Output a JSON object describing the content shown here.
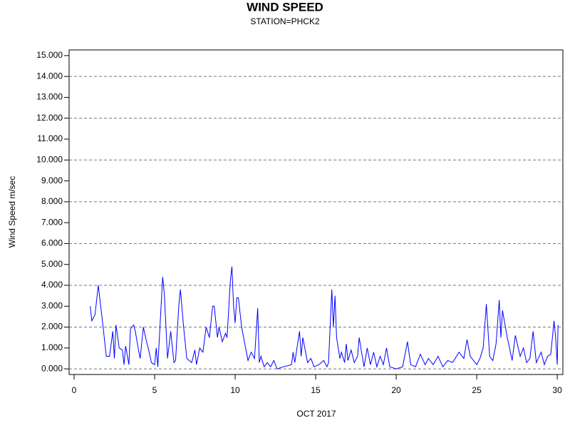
{
  "chart_data": {
    "type": "line",
    "title": "WIND SPEED",
    "subtitle": "STATION=PHCK2",
    "x_label": "OCT 2017",
    "y_label": "Wind Speed m/sec",
    "color": "#0000ff",
    "grid": true,
    "x": [
      1.0,
      1.1,
      1.3,
      1.5,
      1.8,
      2.0,
      2.2,
      2.4,
      2.5,
      2.6,
      2.8,
      3.0,
      3.1,
      3.2,
      3.4,
      3.5,
      3.7,
      3.8,
      4.0,
      4.1,
      4.3,
      4.5,
      4.6,
      4.8,
      5.0,
      5.1,
      5.2,
      5.5,
      5.6,
      5.8,
      6.0,
      6.2,
      6.3,
      6.5,
      6.6,
      6.8,
      7.0,
      7.3,
      7.5,
      7.6,
      7.8,
      8.0,
      8.2,
      8.4,
      8.6,
      8.7,
      8.9,
      9.0,
      9.2,
      9.4,
      9.5,
      9.7,
      9.8,
      9.9,
      10.0,
      10.1,
      10.2,
      10.4,
      10.6,
      10.8,
      11.0,
      11.2,
      11.4,
      11.5,
      11.6,
      11.8,
      12.0,
      12.2,
      12.4,
      12.6,
      13.0,
      13.5,
      13.6,
      13.7,
      14.0,
      14.1,
      14.2,
      14.5,
      14.7,
      14.9,
      15.2,
      15.5,
      15.7,
      15.8,
      16.0,
      16.1,
      16.2,
      16.3,
      16.5,
      16.6,
      16.8,
      16.9,
      17.0,
      17.2,
      17.4,
      17.6,
      17.7,
      18.0,
      18.2,
      18.4,
      18.6,
      18.8,
      19.0,
      19.2,
      19.4,
      19.6,
      20.0,
      20.4,
      20.7,
      20.9,
      21.2,
      21.5,
      21.8,
      22.0,
      22.3,
      22.6,
      22.9,
      23.2,
      23.5,
      23.9,
      24.2,
      24.4,
      24.6,
      25.0,
      25.2,
      25.4,
      25.6,
      25.8,
      26.0,
      26.2,
      26.4,
      26.5,
      26.6,
      26.9,
      27.2,
      27.4,
      27.7,
      27.9,
      28.1,
      28.3,
      28.5,
      28.7,
      29.0,
      29.2,
      29.4,
      29.6,
      29.8,
      29.9,
      30.0,
      30.05
    ],
    "values": [
      3.0,
      2.3,
      2.6,
      4.0,
      2.0,
      0.6,
      0.6,
      1.8,
      0.5,
      2.1,
      1.0,
      0.9,
      0.2,
      1.1,
      0.2,
      1.9,
      2.1,
      1.8,
      0.9,
      0.5,
      2.0,
      1.3,
      1.0,
      0.3,
      0.2,
      1.0,
      0.1,
      4.4,
      3.6,
      0.5,
      1.8,
      0.3,
      0.4,
      3.0,
      3.8,
      2.0,
      0.5,
      0.3,
      0.9,
      0.2,
      1.0,
      0.8,
      2.0,
      1.5,
      3.0,
      3.0,
      1.5,
      2.0,
      1.3,
      1.7,
      1.5,
      4.2,
      4.9,
      3.0,
      2.2,
      3.4,
      3.4,
      2.0,
      1.2,
      0.4,
      0.8,
      0.5,
      2.9,
      0.3,
      0.6,
      0.1,
      0.3,
      0.1,
      0.4,
      0.0,
      0.1,
      0.2,
      0.8,
      0.3,
      1.8,
      0.6,
      1.5,
      0.3,
      0.5,
      0.1,
      0.2,
      0.4,
      0.1,
      0.3,
      3.8,
      2.0,
      3.5,
      1.5,
      0.5,
      0.8,
      0.3,
      1.2,
      0.4,
      0.9,
      0.3,
      0.6,
      1.5,
      0.1,
      1.0,
      0.2,
      0.8,
      0.1,
      0.6,
      0.2,
      1.0,
      0.1,
      0.0,
      0.1,
      1.3,
      0.2,
      0.1,
      0.7,
      0.2,
      0.5,
      0.2,
      0.6,
      0.1,
      0.4,
      0.3,
      0.8,
      0.5,
      1.4,
      0.6,
      0.2,
      0.5,
      1.0,
      3.1,
      0.6,
      0.4,
      1.2,
      3.3,
      1.5,
      2.8,
      1.5,
      0.4,
      1.6,
      0.6,
      1.0,
      0.3,
      0.5,
      1.8,
      0.3,
      0.8,
      0.2,
      0.6,
      0.7,
      2.3,
      1.5,
      0.2,
      2.1
    ],
    "xlim": [
      -0.31,
      30.35
    ],
    "xticks": [
      0,
      5,
      10,
      15,
      20,
      25,
      30
    ],
    "ylim": [
      -0.27,
      15.27
    ],
    "yticks": [
      {
        "value": 0,
        "label": "0.000"
      },
      {
        "value": 1,
        "label": "1.000"
      },
      {
        "value": 2,
        "label": "2.000"
      },
      {
        "value": 3,
        "label": "3.000"
      },
      {
        "value": 4,
        "label": "4.000"
      },
      {
        "value": 5,
        "label": "5.000"
      },
      {
        "value": 6,
        "label": "6.000"
      },
      {
        "value": 7,
        "label": "7.000"
      },
      {
        "value": 8,
        "label": "8.000"
      },
      {
        "value": 9,
        "label": "9.000"
      },
      {
        "value": 10,
        "label": "10.000"
      },
      {
        "value": 11,
        "label": "11.000"
      },
      {
        "value": 12,
        "label": "12.000"
      },
      {
        "value": 13,
        "label": "13.000"
      },
      {
        "value": 14,
        "label": "14.000"
      },
      {
        "value": 15,
        "label": "15.000"
      }
    ]
  }
}
